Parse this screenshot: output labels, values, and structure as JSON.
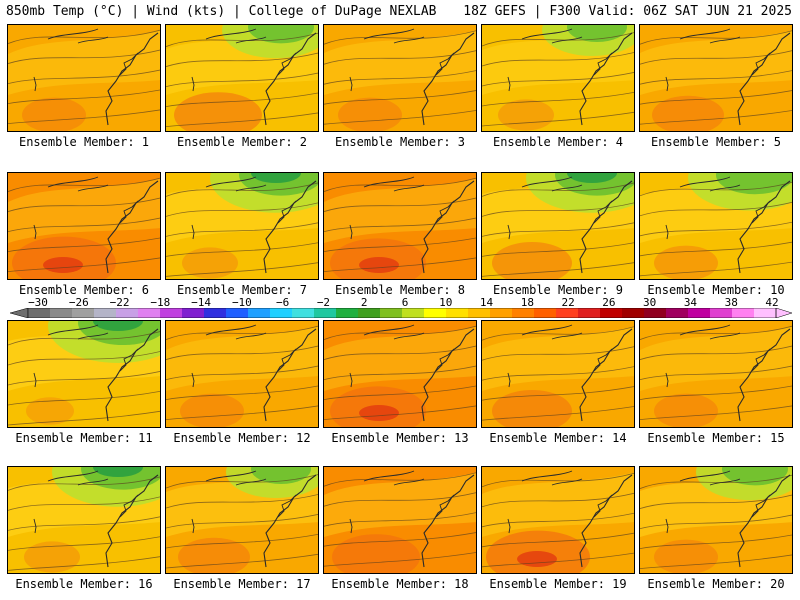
{
  "header": {
    "title_left": "850mb Temp (°C) | Wind (kts) | College of DuPage NEXLAB",
    "title_right": "18Z GEFS | F300 Valid: 06Z SAT JUN 21 2025"
  },
  "members": [
    {
      "label": "Ensemble Member: 1",
      "warmth": 0.55,
      "cool_ne": 0.1,
      "hot_sw": 0.3
    },
    {
      "label": "Ensemble Member: 2",
      "warmth": 0.45,
      "cool_ne": 0.6,
      "hot_sw": 0.6
    },
    {
      "label": "Ensemble Member: 3",
      "warmth": 0.55,
      "cool_ne": 0.2,
      "hot_sw": 0.3
    },
    {
      "label": "Ensemble Member: 4",
      "warmth": 0.45,
      "cool_ne": 0.5,
      "hot_sw": 0.2
    },
    {
      "label": "Ensemble Member: 5",
      "warmth": 0.5,
      "cool_ne": 0.2,
      "hot_sw": 0.4
    },
    {
      "label": "Ensemble Member: 6",
      "warmth": 0.7,
      "cool_ne": 0.1,
      "hot_sw": 0.8
    },
    {
      "label": "Ensemble Member: 7",
      "warmth": 0.35,
      "cool_ne": 0.9,
      "hot_sw": 0.2
    },
    {
      "label": "Ensemble Member: 8",
      "warmth": 0.7,
      "cool_ne": 0.1,
      "hot_sw": 0.7
    },
    {
      "label": "Ensemble Member: 9",
      "warmth": 0.4,
      "cool_ne": 0.9,
      "hot_sw": 0.5
    },
    {
      "label": "Ensemble Member: 10",
      "warmth": 0.4,
      "cool_ne": 0.8,
      "hot_sw": 0.3
    },
    {
      "label": "Ensemble Member: 11",
      "warmth": 0.35,
      "cool_ne": 1.0,
      "hot_sw": 0.1
    },
    {
      "label": "Ensemble Member: 12",
      "warmth": 0.55,
      "cool_ne": 0.1,
      "hot_sw": 0.3
    },
    {
      "label": "Ensemble Member: 13",
      "warmth": 0.65,
      "cool_ne": 0.1,
      "hot_sw": 0.7
    },
    {
      "label": "Ensemble Member: 14",
      "warmth": 0.55,
      "cool_ne": 0.2,
      "hot_sw": 0.5
    },
    {
      "label": "Ensemble Member: 15",
      "warmth": 0.55,
      "cool_ne": 0.1,
      "hot_sw": 0.3
    },
    {
      "label": "Ensemble Member: 16",
      "warmth": 0.4,
      "cool_ne": 0.9,
      "hot_sw": 0.2
    },
    {
      "label": "Ensemble Member: 17",
      "warmth": 0.55,
      "cool_ne": 0.5,
      "hot_sw": 0.4
    },
    {
      "label": "Ensemble Member: 18",
      "warmth": 0.65,
      "cool_ne": 0.2,
      "hot_sw": 0.6
    },
    {
      "label": "Ensemble Member: 19",
      "warmth": 0.55,
      "cool_ne": 0.3,
      "hot_sw": 0.8
    },
    {
      "label": "Ensemble Member: 20",
      "warmth": 0.5,
      "cool_ne": 0.6,
      "hot_sw": 0.3
    }
  ],
  "colorbar": {
    "labels": [
      "−30",
      "−26",
      "−22",
      "−18",
      "−14",
      "−10",
      "−6",
      "−2",
      "2",
      "6",
      "10",
      "14",
      "18",
      "22",
      "26",
      "30",
      "34",
      "38",
      "42"
    ],
    "colors": [
      "#6e6e6e",
      "#8a8a8a",
      "#a0a0a0",
      "#b4b4c8",
      "#c8a0e6",
      "#e080f0",
      "#c040e0",
      "#8020d0",
      "#3030e0",
      "#2060ff",
      "#20a0ff",
      "#20d0ff",
      "#40e0e0",
      "#20c8a0",
      "#20b040",
      "#40a020",
      "#80c020",
      "#c0e020",
      "#ffff00",
      "#ffe000",
      "#ffc000",
      "#ffa000",
      "#ff8000",
      "#ff6000",
      "#ff4020",
      "#e02020",
      "#c00000",
      "#a00000",
      "#900020",
      "#a00060",
      "#c000a0",
      "#e040d0",
      "#ff80f0",
      "#ffc0ff"
    ]
  }
}
